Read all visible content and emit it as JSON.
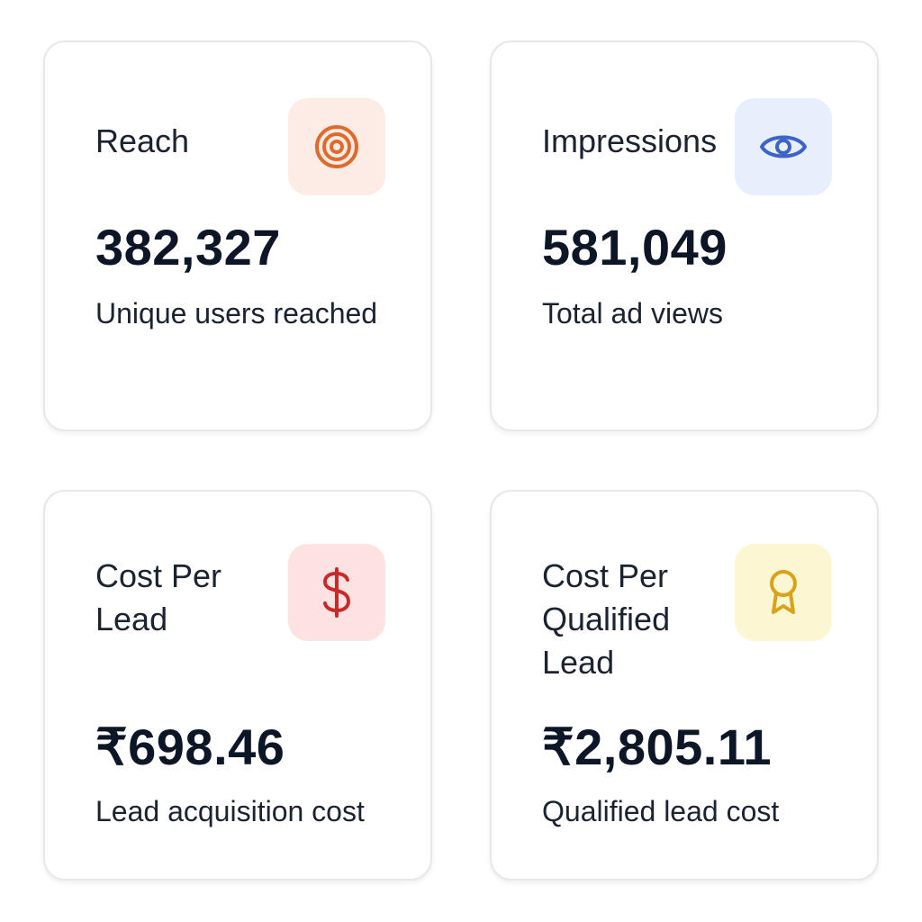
{
  "cards": [
    {
      "label": "Reach",
      "value": "382,327",
      "description": "Unique users reached",
      "icon": "target-icon",
      "icon_color": "#e06a2a",
      "icon_bg": "#fdece5"
    },
    {
      "label": "Impressions",
      "value": "581,049",
      "description": "Total ad views",
      "icon": "eye-icon",
      "icon_color": "#3d63c9",
      "icon_bg": "#e7effd"
    },
    {
      "label": "Cost Per Lead",
      "value": "₹698.46",
      "description": "Lead acquisition cost",
      "icon": "dollar-icon",
      "icon_color": "#c62a2a",
      "icon_bg": "#fde2e2"
    },
    {
      "label": "Cost Per Qualified Lead",
      "value": "₹2,805.11",
      "description": "Qualified lead cost",
      "icon": "award-icon",
      "icon_color": "#d8a21a",
      "icon_bg": "#fdf6d2"
    }
  ]
}
